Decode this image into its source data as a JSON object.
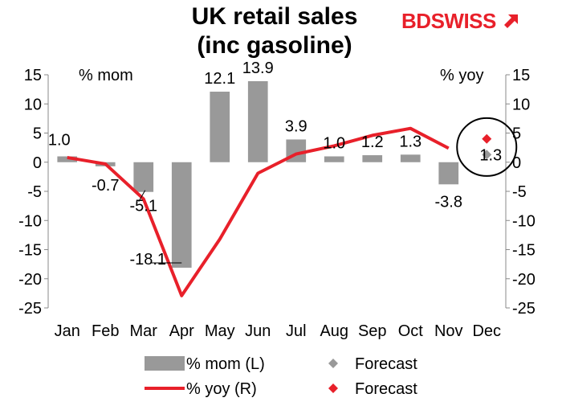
{
  "brand": {
    "part1": "BD",
    "part2": "SWISS",
    "arrow_icon": "arrow-up-right-icon",
    "accent_color": "#e8202a"
  },
  "chart_data": {
    "type": "bar",
    "title": "UK retail sales",
    "subtitle": "(inc gasoline)",
    "left_axis_label": "% mom",
    "right_axis_label": "% yoy",
    "categories": [
      "Jan",
      "Feb",
      "Mar",
      "Apr",
      "May",
      "Jun",
      "Jul",
      "Aug",
      "Sep",
      "Oct",
      "Nov",
      "Dec"
    ],
    "ylim": [
      -25,
      15
    ],
    "y_ticks": [
      15,
      10,
      5,
      0,
      -5,
      -10,
      -15,
      -20,
      -25
    ],
    "y2lim": [
      -25,
      15
    ],
    "y2_ticks": [
      15,
      10,
      5,
      0,
      -5,
      -10,
      -15,
      -20,
      -25
    ],
    "grid": false,
    "legend_position": "bottom",
    "series": [
      {
        "name": "% mom (L)",
        "type": "bar",
        "axis": "left",
        "color": "#999999",
        "values": [
          1.0,
          -0.7,
          -5.1,
          -18.1,
          12.1,
          13.9,
          3.9,
          1.0,
          1.2,
          1.3,
          -3.8,
          null
        ],
        "data_labels": [
          "1.0",
          "-0.7",
          "-5.1",
          "-18.1",
          "12.1",
          "13.9",
          "3.9",
          "1.0",
          "1.2",
          "1.3",
          "-3.8",
          null
        ]
      },
      {
        "name": "% yoy (R)",
        "type": "line",
        "axis": "right",
        "color": "#e8202a",
        "values": [
          0.8,
          -0.3,
          -6.3,
          -22.9,
          -13.2,
          -1.9,
          1.4,
          2.8,
          4.6,
          5.8,
          2.4,
          null
        ]
      },
      {
        "name": "Forecast",
        "type": "scatter",
        "axis": "left",
        "color": "#999999",
        "marker": "diamond",
        "x": [
          "Dec"
        ],
        "values": [
          1.3
        ],
        "data_labels": [
          "1.3"
        ]
      },
      {
        "name": "Forecast",
        "type": "scatter",
        "axis": "right",
        "color": "#e8202a",
        "marker": "diamond",
        "x": [
          "Dec"
        ],
        "values": [
          4.0
        ]
      }
    ],
    "legend": [
      {
        "label": "% mom (L)",
        "swatch": "bar",
        "color": "#999999"
      },
      {
        "label": "Forecast",
        "swatch": "diamond",
        "color": "#999999"
      },
      {
        "label": "% yoy (R)",
        "swatch": "line",
        "color": "#e8202a"
      },
      {
        "label": "Forecast",
        "swatch": "diamond",
        "color": "#e8202a"
      }
    ]
  }
}
